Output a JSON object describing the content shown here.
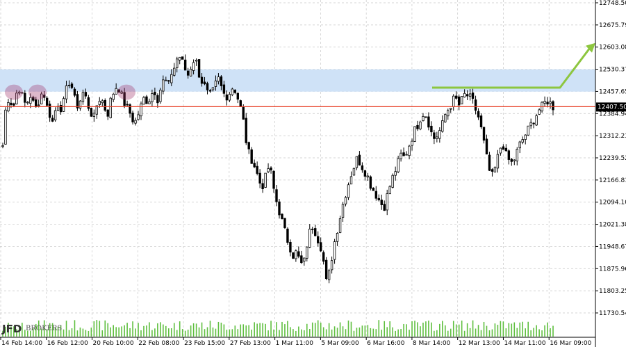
{
  "chart_data": {
    "type": "candlestick",
    "y_ticks": [
      "12748.50",
      "12675.79",
      "12603.08",
      "12530.37",
      "12457.65",
      "12384.94",
      "12312.23",
      "12239.52",
      "12166.81",
      "12094.10",
      "12021.38",
      "11948.67",
      "11875.96",
      "11803.25",
      "11730.54"
    ],
    "ylim": [
      11700,
      12760
    ],
    "x_ticks": [
      "14 Feb 14:00",
      "16 Feb 12:00",
      "20 Feb 10:00",
      "22 Feb 08:00",
      "23 Feb 15:00",
      "27 Feb 13:00",
      "1 Mar 11:00",
      "5 Mar 09:00",
      "6 Mar 16:00",
      "8 Mar 14:00",
      "12 Mar 13:00",
      "14 Mar 11:00",
      "16 Mar 09:00"
    ],
    "current_price": "12407.50",
    "current_price_value": 12407.5,
    "resistance_zone": [
      12457,
      12530
    ],
    "projected_target": 12603.08,
    "breakout_level": 12470,
    "highlight_count": 4,
    "ohlc_path": [
      12280,
      12420,
      12440,
      12400,
      12450,
      12470,
      12430,
      12410,
      12450,
      12420,
      12400,
      12440,
      12460,
      12410,
      12380,
      12350,
      12430,
      12400,
      12420,
      12470,
      12500,
      12440,
      12410,
      12430,
      12460,
      12420,
      12390,
      12370,
      12420,
      12440,
      12410,
      12380,
      12430,
      12460,
      12480,
      12450,
      12420,
      12400,
      12380,
      12350,
      12380,
      12410,
      12440,
      12420,
      12450,
      12460,
      12430,
      12480,
      12500,
      12470,
      12520,
      12540,
      12580,
      12560,
      12530,
      12510,
      12550,
      12570,
      12520,
      12490,
      12470,
      12440,
      12450,
      12480,
      12500,
      12460,
      12440,
      12450,
      12470,
      12460,
      12420,
      12380,
      12300,
      12250,
      12230,
      12200,
      12160,
      12150,
      12180,
      12220,
      12150,
      12100,
      12060,
      12020,
      11980,
      11950,
      11920,
      11930,
      11900,
      11880,
      11950,
      12000,
      12020,
      11980,
      11960,
      11900,
      11820,
      11880,
      11950,
      12000,
      12050,
      12100,
      12140,
      12180,
      12210,
      12240,
      12220,
      12200,
      12180,
      12150,
      12130,
      12110,
      12090,
      12080,
      12120,
      12160,
      12190,
      12220,
      12250,
      12240,
      12270,
      12300,
      12330,
      12350,
      12380,
      12390,
      12360,
      12320,
      12300,
      12320,
      12340,
      12380,
      12400,
      12420,
      12440,
      12410,
      12430,
      12450,
      12440,
      12430,
      12400,
      12370,
      12320,
      12260,
      12200,
      12180,
      12210,
      12260,
      12290,
      12250,
      12230,
      12220,
      12250,
      12280,
      12300,
      12320,
      12340,
      12360,
      12380,
      12400,
      12410,
      12430,
      12420,
      12407
    ]
  },
  "colors": {
    "candle": "#000000",
    "volume": "#5fbf3f",
    "resistance_zone": "#cfe2f7",
    "price_line": "#e8432a",
    "breakout_arrow": "#8dc63f",
    "highlight": "#a0336a",
    "grid": "#c7c7c7"
  },
  "logo": {
    "main": "JFD",
    "sub": "BROKERS"
  }
}
